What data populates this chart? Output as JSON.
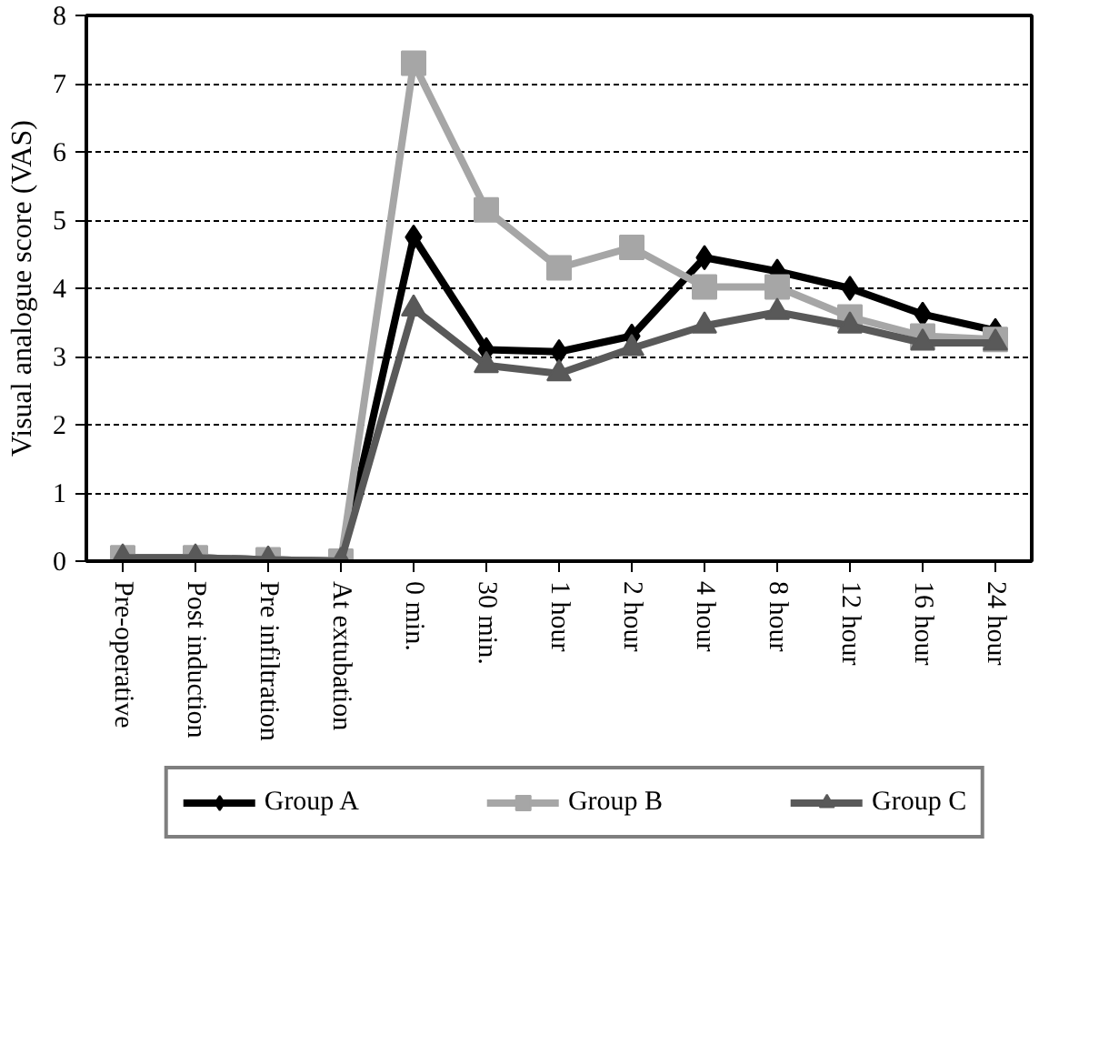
{
  "chart_data": {
    "type": "line",
    "ylabel": "Visual analogue score (VAS)",
    "categories": [
      "Pre-operative",
      "Post induction",
      "Pre infiltration",
      "At extubation",
      "0 min.",
      "30 min.",
      "1 hour",
      "2 hour",
      "4 hour",
      "8 hour",
      "12 hour",
      "16 hour",
      "24 hour"
    ],
    "series": [
      {
        "name": "Group A",
        "color": "#000000",
        "marker": "diamond",
        "values": [
          0.05,
          0.05,
          0.02,
          0,
          4.75,
          3.1,
          3.07,
          3.3,
          4.45,
          4.25,
          4.0,
          3.62,
          3.38
        ]
      },
      {
        "name": "Group B",
        "color": "#a6a6a6",
        "marker": "square",
        "values": [
          0.05,
          0.05,
          0.02,
          0,
          7.3,
          5.15,
          4.3,
          4.6,
          4.02,
          4.02,
          3.58,
          3.3,
          3.25
        ]
      },
      {
        "name": "Group C",
        "color": "#595959",
        "marker": "triangle",
        "values": [
          0.05,
          0.05,
          0.02,
          0,
          3.7,
          2.87,
          2.75,
          3.12,
          3.45,
          3.65,
          3.45,
          3.2,
          3.2
        ]
      }
    ],
    "ylim": [
      0,
      8
    ],
    "yticks": [
      0,
      1,
      2,
      3,
      4,
      5,
      6,
      7,
      8
    ],
    "grid": "y",
    "legend": "bottom",
    "line_style": "solid"
  }
}
